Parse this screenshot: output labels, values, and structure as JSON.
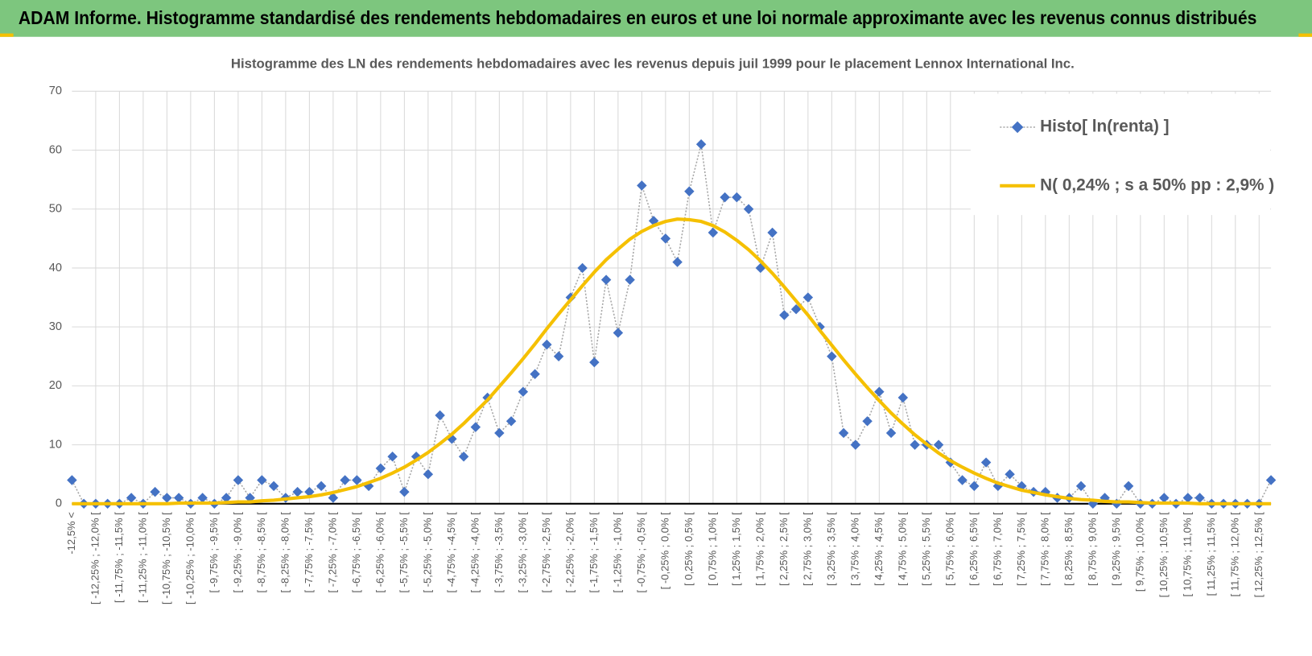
{
  "header": {
    "title": "ADAM Informe. Histogramme standardisé des rendements hebdomadaires en euros et une loi normale approximante avec les revenus connus distribués"
  },
  "chart_data": {
    "type": "line",
    "title": "Histogramme des LN des rendements hebdomadaires avec les revenus depuis juil 1999 pour le placement Lennox International Inc.",
    "categories": [
      "-12,5% <",
      null,
      "[ -12,25% ; -12,0% [",
      null,
      "[ -11,75% ; -11,5% [",
      null,
      "[ -11,25% ; -11,0% [",
      null,
      "[ -10,75% ; -10,5% [",
      null,
      "[ -10,25% ; -10,0% [",
      null,
      "[ -9,75% ; -9,5% [",
      null,
      "[ -9,25% ; -9,0% [",
      null,
      "[ -8,75% ; -8,5% [",
      null,
      "[ -8,25% ; -8,0% [",
      null,
      "[ -7,75% ; -7,5% [",
      null,
      "[ -7,25% ; -7,0% [",
      null,
      "[ -6,75% ; -6,5% [",
      null,
      "[ -6,25% ; -6,0% [",
      null,
      "[ -5,75% ; -5,5% [",
      null,
      "[ -5,25% ; -5,0% [",
      null,
      "[ -4,75% ; -4,5% [",
      null,
      "[ -4,25% ; -4,0% [",
      null,
      "[ -3,75% ; -3,5% [",
      null,
      "[ -3,25% ; -3,0% [",
      null,
      "[ -2,75% ; -2,5% [",
      null,
      "[ -2,25% ; -2,0% [",
      null,
      "[ -1,75% ; -1,5% [",
      null,
      "[ -1,25% ; -1,0% [",
      null,
      "[ -0,75% ; -0,5% [",
      null,
      "[ -0,25% ; 0,0% [",
      null,
      "[ 0,25% ; 0,5% [",
      null,
      "[ 0,75% ; 1,0% [",
      null,
      "[ 1,25% ; 1,5% [",
      null,
      "[ 1,75% ; 2,0% [",
      null,
      "[ 2,25% ; 2,5% [",
      null,
      "[ 2,75% ; 3,0% [",
      null,
      "[ 3,25% ; 3,5% [",
      null,
      "[ 3,75% ; 4,0% [",
      null,
      "[ 4,25% ; 4,5% [",
      null,
      "[ 4,75% ; 5,0% [",
      null,
      "[ 5,25% ; 5,5% [",
      null,
      "[ 5,75% ; 6,0% [",
      null,
      "[ 6,25% ; 6,5% [",
      null,
      "[ 6,75% ; 7,0% [",
      null,
      "[ 7,25% ; 7,5% [",
      null,
      "[ 7,75% ; 8,0% [",
      null,
      "[ 8,25% ; 8,5% [",
      null,
      "[ 8,75% ; 9,0% [",
      null,
      "[ 9,25% ; 9,5% [",
      null,
      "[ 9,75% ; 10,0% [",
      null,
      "[ 10,25% ; 10,5% [",
      null,
      "[ 10,75% ; 11,0% [",
      null,
      "[ 11,25% ; 11,5% [",
      null,
      "[ 11,75% ; 12,0% [",
      null,
      "[ 12,25% ; 12,5% [",
      null
    ],
    "series": [
      {
        "name": "Histo[ ln(renta) ]",
        "color": "#4472c4",
        "marker": "diamond",
        "values": [
          4,
          0,
          0,
          0,
          0,
          1,
          0,
          2,
          1,
          1,
          0,
          1,
          0,
          1,
          4,
          1,
          4,
          3,
          1,
          2,
          2,
          3,
          1,
          4,
          4,
          3,
          6,
          8,
          2,
          8,
          5,
          15,
          11,
          8,
          13,
          18,
          12,
          14,
          19,
          22,
          27,
          25,
          35,
          40,
          24,
          38,
          29,
          38,
          54,
          48,
          45,
          41,
          53,
          61,
          46,
          52,
          52,
          50,
          40,
          46,
          32,
          33,
          35,
          30,
          25,
          12,
          10,
          14,
          19,
          12,
          18,
          10,
          10,
          10,
          7,
          4,
          3,
          7,
          3,
          5,
          3,
          2,
          2,
          1,
          1,
          3,
          0,
          1,
          0,
          3,
          0,
          0,
          1,
          0,
          1,
          1,
          0,
          0,
          0,
          0,
          0,
          4
        ]
      },
      {
        "name": "N( 0,24% ; s a 50% pp : 2,9% )",
        "color": "#f5c000",
        "values": [
          0.0,
          0.0,
          0.0,
          0.0,
          0.0,
          0.0,
          0.0,
          0.0,
          0.0,
          0.1,
          0.1,
          0.1,
          0.1,
          0.2,
          0.3,
          0.3,
          0.5,
          0.6,
          0.8,
          1.0,
          1.2,
          1.5,
          1.9,
          2.4,
          2.9,
          3.6,
          4.3,
          5.2,
          6.2,
          7.4,
          8.7,
          10.2,
          11.8,
          13.6,
          15.6,
          17.6,
          19.9,
          22.2,
          24.6,
          27.1,
          29.7,
          32.2,
          34.6,
          37.0,
          39.3,
          41.4,
          43.2,
          44.9,
          46.2,
          47.2,
          47.9,
          48.3,
          48.2,
          47.9,
          47.2,
          46.1,
          44.7,
          43.1,
          41.2,
          39.1,
          36.8,
          34.4,
          32.0,
          29.4,
          26.9,
          24.4,
          22.0,
          19.7,
          17.5,
          15.4,
          13.5,
          11.7,
          10.1,
          8.6,
          7.3,
          6.2,
          5.2,
          4.3,
          3.5,
          2.9,
          2.3,
          1.9,
          1.5,
          1.2,
          0.9,
          0.7,
          0.6,
          0.4,
          0.3,
          0.3,
          0.2,
          0.1,
          0.1,
          0.1,
          0.1,
          0.0,
          0.0,
          0.0,
          0.0,
          0.0,
          0.0,
          0.0
        ]
      }
    ],
    "ylim": [
      0,
      70
    ],
    "yticks": [
      0,
      10,
      20,
      30,
      40,
      50,
      60,
      70
    ],
    "grid": true,
    "legend": "upper right"
  }
}
